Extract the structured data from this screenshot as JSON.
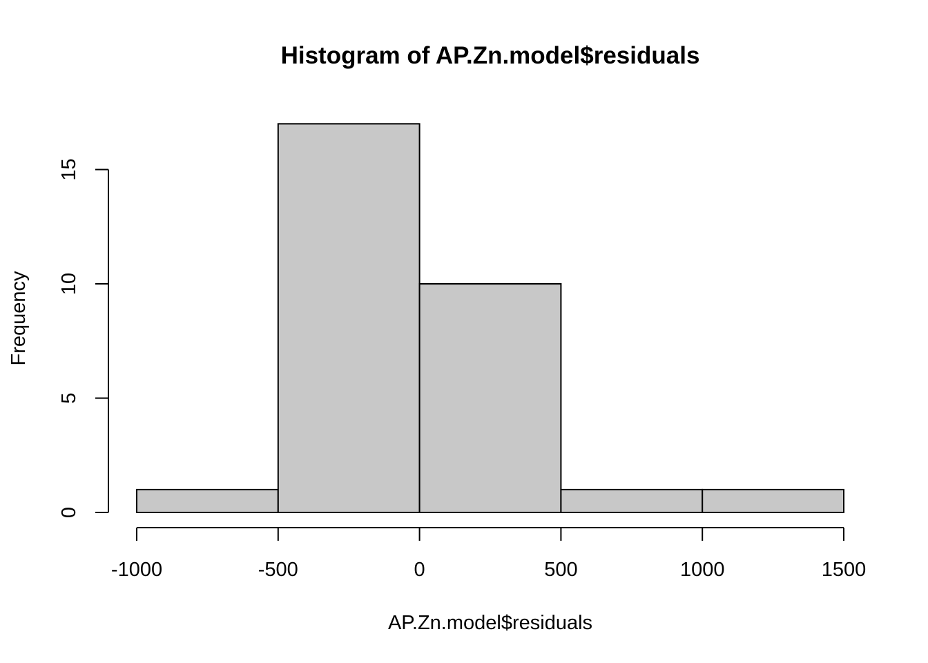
{
  "chart_data": {
    "type": "bar",
    "subtype": "histogram",
    "title": "Histogram of AP.Zn.model$residuals",
    "xlabel": "AP.Zn.model$residuals",
    "ylabel": "Frequency",
    "bins": [
      {
        "start": -1000,
        "end": -500,
        "count": 1
      },
      {
        "start": -500,
        "end": 0,
        "count": 17
      },
      {
        "start": 0,
        "end": 500,
        "count": 10
      },
      {
        "start": 500,
        "end": 1000,
        "count": 1
      },
      {
        "start": 1000,
        "end": 1500,
        "count": 1
      }
    ],
    "xlim": [
      -1000,
      1500
    ],
    "ylim": [
      0,
      17
    ],
    "x_ticks": [
      -1000,
      -500,
      0,
      500,
      1000,
      1500
    ],
    "y_ticks": [
      0,
      5,
      10,
      15
    ],
    "bar_fill": "#c8c8c8",
    "bar_stroke": "#000000",
    "grid": false,
    "legend": "none"
  }
}
